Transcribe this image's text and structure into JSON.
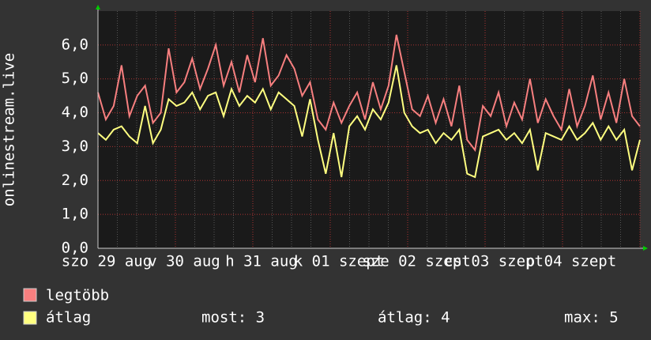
{
  "chart_data": {
    "type": "line",
    "y_label": "onlinestream.live",
    "x_labels": [
      "szo 29 aug",
      "v 30 aug",
      "h 31 aug",
      "k 01 szept",
      "sze 02 szept",
      "cs 03 szept",
      "p 04 szept"
    ],
    "ylim": [
      0,
      7
    ],
    "yticks": [
      {
        "value": 0,
        "label": "0,0"
      },
      {
        "value": 1,
        "label": "1,0"
      },
      {
        "value": 2,
        "label": "2,0"
      },
      {
        "value": 3,
        "label": "3,0"
      },
      {
        "value": 4,
        "label": "4,0"
      },
      {
        "value": 5,
        "label": "5,0"
      },
      {
        "value": 6,
        "label": "6,0"
      }
    ],
    "grid": true,
    "series": [
      {
        "name": "legtöbb",
        "color": "#f77f7f",
        "values": [
          4.6,
          3.8,
          4.2,
          5.4,
          3.9,
          4.5,
          4.8,
          3.7,
          4.0,
          5.9,
          4.6,
          4.9,
          5.6,
          4.7,
          5.3,
          6.0,
          4.8,
          5.5,
          4.6,
          5.7,
          4.9,
          6.2,
          4.8,
          5.1,
          5.7,
          5.3,
          4.5,
          4.9,
          3.8,
          3.5,
          4.3,
          3.7,
          4.2,
          4.6,
          3.8,
          4.9,
          4.1,
          4.8,
          6.3,
          5.2,
          4.1,
          3.9,
          4.5,
          3.7,
          4.4,
          3.6,
          4.8,
          3.2,
          2.9,
          4.2,
          3.9,
          4.6,
          3.6,
          4.3,
          3.8,
          5.0,
          3.7,
          4.4,
          3.9,
          3.5,
          4.7,
          3.6,
          4.2,
          5.1,
          3.8,
          4.6,
          3.7,
          5.0,
          3.9,
          3.6
        ]
      },
      {
        "name": "átlag",
        "color": "#ffff80",
        "values": [
          3.4,
          3.2,
          3.5,
          3.6,
          3.3,
          3.1,
          4.2,
          3.1,
          3.5,
          4.4,
          4.2,
          4.3,
          4.6,
          4.1,
          4.5,
          4.6,
          3.9,
          4.7,
          4.2,
          4.5,
          4.3,
          4.7,
          4.1,
          4.6,
          4.4,
          4.2,
          3.3,
          4.4,
          3.2,
          2.2,
          3.4,
          2.1,
          3.6,
          3.9,
          3.5,
          4.1,
          3.8,
          4.3,
          5.4,
          4.0,
          3.6,
          3.4,
          3.5,
          3.1,
          3.4,
          3.2,
          3.5,
          2.2,
          2.1,
          3.3,
          3.4,
          3.5,
          3.2,
          3.4,
          3.1,
          3.5,
          2.3,
          3.4,
          3.3,
          3.2,
          3.6,
          3.2,
          3.4,
          3.7,
          3.2,
          3.6,
          3.2,
          3.5,
          2.3,
          3.2
        ]
      }
    ],
    "stats": [
      "most: 3",
      "átlag: 4",
      "max: 5"
    ]
  }
}
